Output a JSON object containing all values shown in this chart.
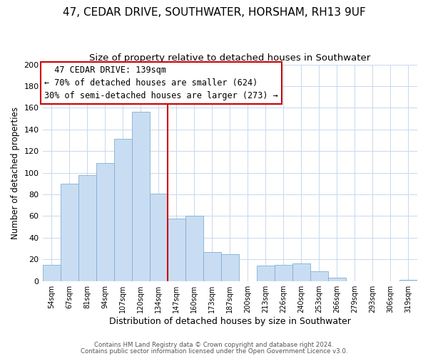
{
  "title": "47, CEDAR DRIVE, SOUTHWATER, HORSHAM, RH13 9UF",
  "subtitle": "Size of property relative to detached houses in Southwater",
  "xlabel": "Distribution of detached houses by size in Southwater",
  "ylabel": "Number of detached properties",
  "footer_line1": "Contains HM Land Registry data © Crown copyright and database right 2024.",
  "footer_line2": "Contains public sector information licensed under the Open Government Licence v3.0.",
  "bin_labels": [
    "54sqm",
    "67sqm",
    "81sqm",
    "94sqm",
    "107sqm",
    "120sqm",
    "134sqm",
    "147sqm",
    "160sqm",
    "173sqm",
    "187sqm",
    "200sqm",
    "213sqm",
    "226sqm",
    "240sqm",
    "253sqm",
    "266sqm",
    "279sqm",
    "293sqm",
    "306sqm",
    "319sqm"
  ],
  "bar_heights": [
    15,
    90,
    98,
    109,
    131,
    156,
    81,
    58,
    60,
    27,
    25,
    0,
    14,
    15,
    16,
    9,
    3,
    0,
    0,
    0,
    1
  ],
  "bar_color": "#c9ddf2",
  "bar_edge_color": "#7fafd4",
  "vline_x_index": 6,
  "vline_color": "#cc0000",
  "ylim": [
    0,
    200
  ],
  "yticks": [
    0,
    20,
    40,
    60,
    80,
    100,
    120,
    140,
    160,
    180,
    200
  ],
  "annotation_title": "47 CEDAR DRIVE: 139sqm",
  "annotation_line1": "← 70% of detached houses are smaller (624)",
  "annotation_line2": "30% of semi-detached houses are larger (273) →",
  "annotation_box_edge": "#cc0000",
  "title_fontsize": 11,
  "subtitle_fontsize": 9.5,
  "annotation_fontsize": 8.5,
  "ylabel_fontsize": 8.5,
  "xlabel_fontsize": 9
}
